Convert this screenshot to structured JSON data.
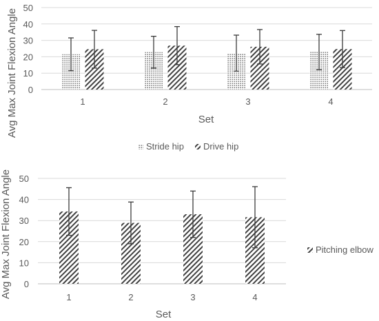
{
  "colors": {
    "grid": "#d9d9d9",
    "text": "#595959",
    "bar_stroke": "#404040",
    "pattern": "#404040",
    "error_bar": "#3a3a3a"
  },
  "chart_data": [
    {
      "type": "bar",
      "categories": [
        "1",
        "2",
        "3",
        "4"
      ],
      "xlabel": "Set",
      "ylabel": "Avg Max Joint Flexion Angle",
      "ylim": [
        0,
        50
      ],
      "yticks": [
        "0",
        "10",
        "20",
        "30",
        "40",
        "50"
      ],
      "grid": true,
      "legend_position": "bottom",
      "series": [
        {
          "name": "Stride hip",
          "pattern": "dots",
          "values": [
            21.5,
            22.8,
            22.2,
            22.9
          ],
          "error": [
            10,
            9.7,
            11,
            10.8
          ]
        },
        {
          "name": "Drive hip",
          "pattern": "diagonal",
          "values": [
            24.6,
            26.8,
            26.1,
            24.7
          ],
          "error": [
            11.5,
            11.6,
            10.5,
            11.3
          ]
        }
      ]
    },
    {
      "type": "bar",
      "categories": [
        "1",
        "2",
        "3",
        "4"
      ],
      "xlabel": "Set",
      "ylabel": "Avg Max Joint Flexion Angle",
      "ylim": [
        0,
        50
      ],
      "yticks": [
        "0",
        "10",
        "20",
        "30",
        "40",
        "50"
      ],
      "grid": true,
      "legend_position": "right",
      "series": [
        {
          "name": "Pitching elbow",
          "pattern": "diagonal",
          "values": [
            34.3,
            28.9,
            33.0,
            31.6
          ],
          "error": [
            11.3,
            9.9,
            11.0,
            14.5
          ]
        }
      ]
    }
  ]
}
